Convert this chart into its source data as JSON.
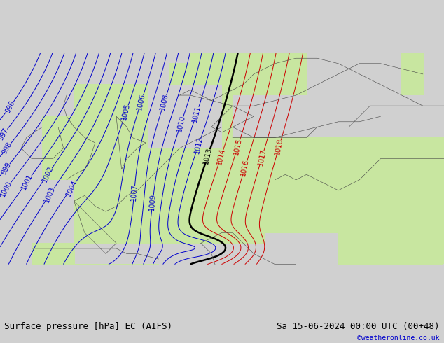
{
  "title_left": "Surface pressure [hPa] EC (AIFS)",
  "title_right": "Sa 15-06-2024 00:00 UTC (00+48)",
  "watermark": "©weatheronline.co.uk",
  "bg_color_ocean": "#d0d0d0",
  "bg_color_land": "#c8e6a0",
  "blue_color": "#0000cc",
  "red_color": "#cc0000",
  "black_color": "#000000",
  "bottom_bar_color": "#c8e6a0",
  "bottom_text_color": "#000000",
  "watermark_color": "#0000cc",
  "label_fontsize": 7,
  "title_fontsize": 9,
  "xlim": [
    -12,
    30
  ],
  "ylim": [
    42,
    62
  ],
  "blue_levels": [
    996,
    997,
    998,
    999,
    1000,
    1001,
    1002,
    1003,
    1004,
    1005,
    1006,
    1007,
    1008,
    1009,
    1010,
    1011,
    1012
  ],
  "black_levels": [
    1013
  ],
  "red_levels": [
    1014,
    1015,
    1016,
    1017,
    1018
  ]
}
